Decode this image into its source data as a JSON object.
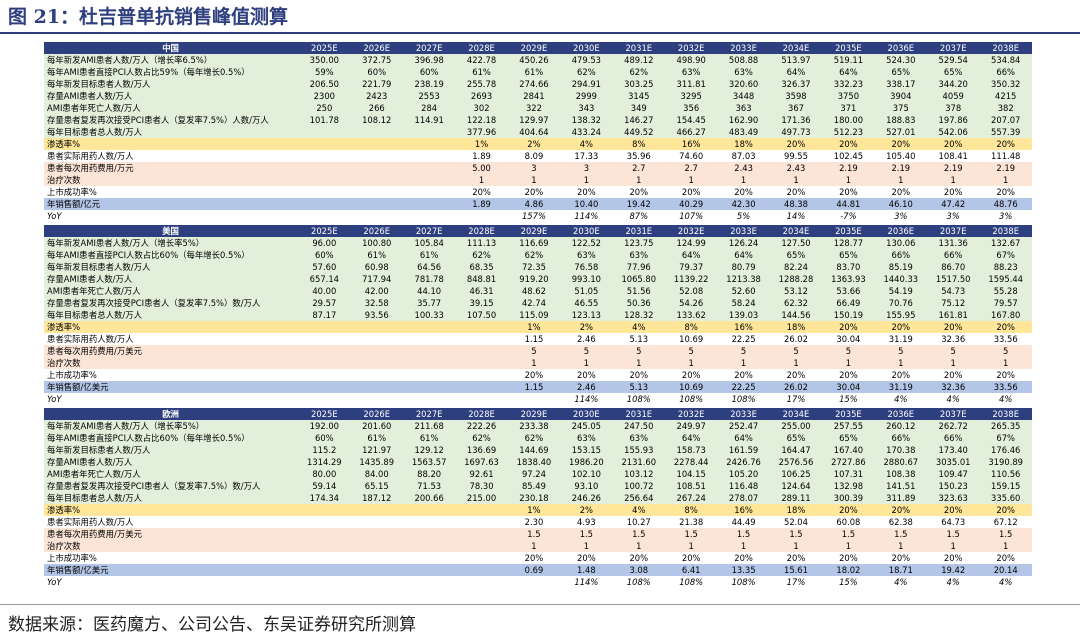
{
  "title": "图 21：杜吉普单抗销售峰值测算",
  "source": "数据来源：医药魔方、公司公告、东吴证券研究所测算",
  "years": [
    "2025E",
    "2026E",
    "2027E",
    "2028E",
    "2029E",
    "2030E",
    "2031E",
    "2032E",
    "2033E",
    "2034E",
    "2035E",
    "2036E",
    "2037E",
    "2038E"
  ],
  "sections": [
    {
      "name": "中国",
      "rows": [
        {
          "label": "每年新发AMI患者人数/万人（增长率6.5%）",
          "style": "g",
          "values": [
            "350.00",
            "372.75",
            "396.98",
            "422.78",
            "450.26",
            "479.53",
            "489.12",
            "498.90",
            "508.88",
            "513.97",
            "519.11",
            "524.30",
            "529.54",
            "534.84"
          ]
        },
        {
          "label": "每年AMI患者直接PCI人数占比59%（每年增长0.5%）",
          "style": "g",
          "values": [
            "59%",
            "60%",
            "60%",
            "61%",
            "61%",
            "62%",
            "62%",
            "63%",
            "63%",
            "64%",
            "64%",
            "65%",
            "65%",
            "66%"
          ]
        },
        {
          "label": "每年新发目标患者人数/万人",
          "style": "g",
          "values": [
            "206.50",
            "221.79",
            "238.19",
            "255.78",
            "274.66",
            "294.91",
            "303.25",
            "311.81",
            "320.60",
            "326.37",
            "332.23",
            "338.17",
            "344.20",
            "350.32"
          ]
        },
        {
          "label": "存量AMI患者人数/万人",
          "style": "g",
          "values": [
            "2300",
            "2423",
            "2553",
            "2693",
            "2841",
            "2999",
            "3145",
            "3295",
            "3448",
            "3598",
            "3750",
            "3904",
            "4059",
            "4215"
          ]
        },
        {
          "label": "AMI患者年死亡人数/万人",
          "style": "g",
          "values": [
            "250",
            "266",
            "284",
            "302",
            "322",
            "343",
            "349",
            "356",
            "363",
            "367",
            "371",
            "375",
            "378",
            "382"
          ]
        },
        {
          "label": "存量患者复发再次接受PCI患者人（复发率7.5%）人数/万人",
          "style": "g",
          "values": [
            "101.78",
            "108.12",
            "114.91",
            "122.18",
            "129.97",
            "138.32",
            "146.27",
            "154.45",
            "162.90",
            "171.36",
            "180.00",
            "188.83",
            "197.86",
            "207.07"
          ]
        },
        {
          "label": "每年目标患者总人数/万人",
          "style": "g",
          "values": [
            "",
            "",
            "",
            "377.96",
            "404.64",
            "433.24",
            "449.52",
            "466.27",
            "483.49",
            "497.73",
            "512.23",
            "527.01",
            "542.06",
            "557.39"
          ]
        },
        {
          "label": "渗透率%",
          "style": "y",
          "values": [
            "",
            "",
            "",
            "1%",
            "2%",
            "4%",
            "8%",
            "16%",
            "18%",
            "20%",
            "20%",
            "20%",
            "20%",
            "20%"
          ]
        },
        {
          "label": "患者实际用药人数/万人",
          "style": "w",
          "values": [
            "",
            "",
            "",
            "1.89",
            "8.09",
            "17.33",
            "35.96",
            "74.60",
            "87.03",
            "99.55",
            "102.45",
            "105.40",
            "108.41",
            "111.48"
          ]
        },
        {
          "label": "患者每次用药费用/万元",
          "style": "p",
          "values": [
            "",
            "",
            "",
            "5.00",
            "3",
            "3",
            "2.7",
            "2.7",
            "2.43",
            "2.43",
            "2.19",
            "2.19",
            "2.19",
            "2.19"
          ]
        },
        {
          "label": "治疗次数",
          "style": "p",
          "values": [
            "",
            "",
            "",
            "1",
            "1",
            "1",
            "1",
            "1",
            "1",
            "1",
            "1",
            "1",
            "1",
            "1"
          ]
        },
        {
          "label": "上市成功率%",
          "style": "w",
          "values": [
            "",
            "",
            "",
            "20%",
            "20%",
            "20%",
            "20%",
            "20%",
            "20%",
            "20%",
            "20%",
            "20%",
            "20%",
            "20%"
          ]
        },
        {
          "label": "年销售额/亿元",
          "style": "b",
          "values": [
            "",
            "",
            "",
            "1.89",
            "4.86",
            "10.40",
            "19.42",
            "40.29",
            "42.30",
            "48.38",
            "44.81",
            "46.10",
            "47.42",
            "48.76"
          ]
        },
        {
          "label": "YoY",
          "style": "yoy",
          "values": [
            "",
            "",
            "",
            "",
            "157%",
            "114%",
            "87%",
            "107%",
            "5%",
            "14%",
            "-7%",
            "3%",
            "3%",
            "3%"
          ]
        }
      ]
    },
    {
      "name": "美国",
      "rows": [
        {
          "label": "每年新发AMI患者人数/万人（增长率5%）",
          "style": "g",
          "values": [
            "96.00",
            "100.80",
            "105.84",
            "111.13",
            "116.69",
            "122.52",
            "123.75",
            "124.99",
            "126.24",
            "127.50",
            "128.77",
            "130.06",
            "131.36",
            "132.67"
          ]
        },
        {
          "label": "每年AMI患者直接PCI人数占比60%（每年增长0.5%）",
          "style": "g",
          "values": [
            "60%",
            "61%",
            "61%",
            "62%",
            "62%",
            "63%",
            "63%",
            "64%",
            "64%",
            "65%",
            "65%",
            "66%",
            "66%",
            "67%"
          ]
        },
        {
          "label": "每年新发目标患者人数/万人",
          "style": "g",
          "values": [
            "57.60",
            "60.98",
            "64.56",
            "68.35",
            "72.35",
            "76.58",
            "77.96",
            "79.37",
            "80.79",
            "82.24",
            "83.70",
            "85.19",
            "86.70",
            "88.23"
          ]
        },
        {
          "label": "存量AMI患者人数/万人",
          "style": "g",
          "values": [
            "657.14",
            "717.94",
            "781.78",
            "848.81",
            "919.20",
            "993.10",
            "1065.80",
            "1139.22",
            "1213.38",
            "1288.28",
            "1363.93",
            "1440.33",
            "1517.50",
            "1595.44"
          ]
        },
        {
          "label": "AMI患者年死亡人数/万人",
          "style": "g",
          "values": [
            "40.00",
            "42.00",
            "44.10",
            "46.31",
            "48.62",
            "51.05",
            "51.56",
            "52.08",
            "52.60",
            "53.12",
            "53.66",
            "54.19",
            "54.73",
            "55.28"
          ]
        },
        {
          "label": "存量患者复发再次接受PCI患者人（复发率7.5%）数/万人",
          "style": "g",
          "values": [
            "29.57",
            "32.58",
            "35.77",
            "39.15",
            "42.74",
            "46.55",
            "50.36",
            "54.26",
            "58.24",
            "62.32",
            "66.49",
            "70.76",
            "75.12",
            "79.57"
          ]
        },
        {
          "label": "每年目标患者总人数/万人",
          "style": "g",
          "values": [
            "87.17",
            "93.56",
            "100.33",
            "107.50",
            "115.09",
            "123.13",
            "128.32",
            "133.62",
            "139.03",
            "144.56",
            "150.19",
            "155.95",
            "161.81",
            "167.80"
          ]
        },
        {
          "label": "渗透率%",
          "style": "y",
          "values": [
            "",
            "",
            "",
            "",
            "1%",
            "2%",
            "4%",
            "8%",
            "16%",
            "18%",
            "20%",
            "20%",
            "20%",
            "20%"
          ]
        },
        {
          "label": "患者实际用药人数/万人",
          "style": "w",
          "values": [
            "",
            "",
            "",
            "",
            "1.15",
            "2.46",
            "5.13",
            "10.69",
            "22.25",
            "26.02",
            "30.04",
            "31.19",
            "32.36",
            "33.56"
          ]
        },
        {
          "label": "患者每次用药费用/万美元",
          "style": "p",
          "values": [
            "",
            "",
            "",
            "",
            "5",
            "5",
            "5",
            "5",
            "5",
            "5",
            "5",
            "5",
            "5",
            "5"
          ]
        },
        {
          "label": "治疗次数",
          "style": "p",
          "values": [
            "",
            "",
            "",
            "",
            "1",
            "1",
            "1",
            "1",
            "1",
            "1",
            "1",
            "1",
            "1",
            "1"
          ]
        },
        {
          "label": "上市成功率%",
          "style": "w",
          "values": [
            "",
            "",
            "",
            "",
            "20%",
            "20%",
            "20%",
            "20%",
            "20%",
            "20%",
            "20%",
            "20%",
            "20%",
            "20%"
          ]
        },
        {
          "label": "年销售额/亿美元",
          "style": "b",
          "values": [
            "",
            "",
            "",
            "",
            "1.15",
            "2.46",
            "5.13",
            "10.69",
            "22.25",
            "26.02",
            "30.04",
            "31.19",
            "32.36",
            "33.56"
          ]
        },
        {
          "label": "YoY",
          "style": "yoy",
          "values": [
            "",
            "",
            "",
            "",
            "",
            "114%",
            "108%",
            "108%",
            "108%",
            "17%",
            "15%",
            "4%",
            "4%",
            "4%"
          ]
        }
      ]
    },
    {
      "name": "欧洲",
      "rows": [
        {
          "label": "每年新发AMI患者人数/万人（增长率5%）",
          "style": "g",
          "values": [
            "192.00",
            "201.60",
            "211.68",
            "222.26",
            "233.38",
            "245.05",
            "247.50",
            "249.97",
            "252.47",
            "255.00",
            "257.55",
            "260.12",
            "262.72",
            "265.35"
          ]
        },
        {
          "label": "每年AMI患者直接PCI人数占比60%（每年增长0.5%）",
          "style": "g",
          "values": [
            "60%",
            "61%",
            "61%",
            "62%",
            "62%",
            "63%",
            "63%",
            "64%",
            "64%",
            "65%",
            "65%",
            "66%",
            "66%",
            "67%"
          ]
        },
        {
          "label": "每年新发目标患者人数/万人",
          "style": "g",
          "values": [
            "115.2",
            "121.97",
            "129.12",
            "136.69",
            "144.69",
            "153.15",
            "155.93",
            "158.73",
            "161.59",
            "164.47",
            "167.40",
            "170.38",
            "173.40",
            "176.46"
          ]
        },
        {
          "label": "存量AMI患者人数/万人",
          "style": "g",
          "values": [
            "1314.29",
            "1435.89",
            "1563.57",
            "1697.63",
            "1838.40",
            "1986.20",
            "2131.60",
            "2278.44",
            "2426.76",
            "2576.56",
            "2727.86",
            "2880.67",
            "3035.01",
            "3190.89"
          ]
        },
        {
          "label": "AMI患者年死亡人数/万人",
          "style": "g",
          "values": [
            "80.00",
            "84.00",
            "88.20",
            "92.61",
            "97.24",
            "102.10",
            "103.12",
            "104.15",
            "105.20",
            "106.25",
            "107.31",
            "108.38",
            "109.47",
            "110.56"
          ]
        },
        {
          "label": "存量患者复发再次接受PCI患者人（复发率7.5%）数/万人",
          "style": "g",
          "values": [
            "59.14",
            "65.15",
            "71.53",
            "78.30",
            "85.49",
            "93.10",
            "100.72",
            "108.51",
            "116.48",
            "124.64",
            "132.98",
            "141.51",
            "150.23",
            "159.15"
          ]
        },
        {
          "label": "每年目标患者总人数/万人",
          "style": "g",
          "values": [
            "174.34",
            "187.12",
            "200.66",
            "215.00",
            "230.18",
            "246.26",
            "256.64",
            "267.24",
            "278.07",
            "289.11",
            "300.39",
            "311.89",
            "323.63",
            "335.60"
          ]
        },
        {
          "label": "渗透率%",
          "style": "y",
          "values": [
            "",
            "",
            "",
            "",
            "1%",
            "2%",
            "4%",
            "8%",
            "16%",
            "18%",
            "20%",
            "20%",
            "20%",
            "20%"
          ]
        },
        {
          "label": "患者实际用药人数/万人",
          "style": "w",
          "values": [
            "",
            "",
            "",
            "",
            "2.30",
            "4.93",
            "10.27",
            "21.38",
            "44.49",
            "52.04",
            "60.08",
            "62.38",
            "64.73",
            "67.12"
          ]
        },
        {
          "label": "患者每次用药费用/万美元",
          "style": "p",
          "values": [
            "",
            "",
            "",
            "",
            "1.5",
            "1.5",
            "1.5",
            "1.5",
            "1.5",
            "1.5",
            "1.5",
            "1.5",
            "1.5",
            "1.5"
          ]
        },
        {
          "label": "治疗次数",
          "style": "p",
          "values": [
            "",
            "",
            "",
            "",
            "1",
            "1",
            "1",
            "1",
            "1",
            "1",
            "1",
            "1",
            "1",
            "1"
          ]
        },
        {
          "label": "上市成功率%",
          "style": "w",
          "values": [
            "",
            "",
            "",
            "",
            "20%",
            "20%",
            "20%",
            "20%",
            "20%",
            "20%",
            "20%",
            "20%",
            "20%",
            "20%"
          ]
        },
        {
          "label": "年销售额/亿美元",
          "style": "b",
          "values": [
            "",
            "",
            "",
            "",
            "0.69",
            "1.48",
            "3.08",
            "6.41",
            "13.35",
            "15.61",
            "18.02",
            "18.71",
            "19.42",
            "20.14"
          ]
        },
        {
          "label": "YoY",
          "style": "yoy",
          "values": [
            "",
            "",
            "",
            "",
            "",
            "114%",
            "108%",
            "108%",
            "108%",
            "17%",
            "15%",
            "4%",
            "4%",
            "4%"
          ]
        }
      ]
    }
  ]
}
